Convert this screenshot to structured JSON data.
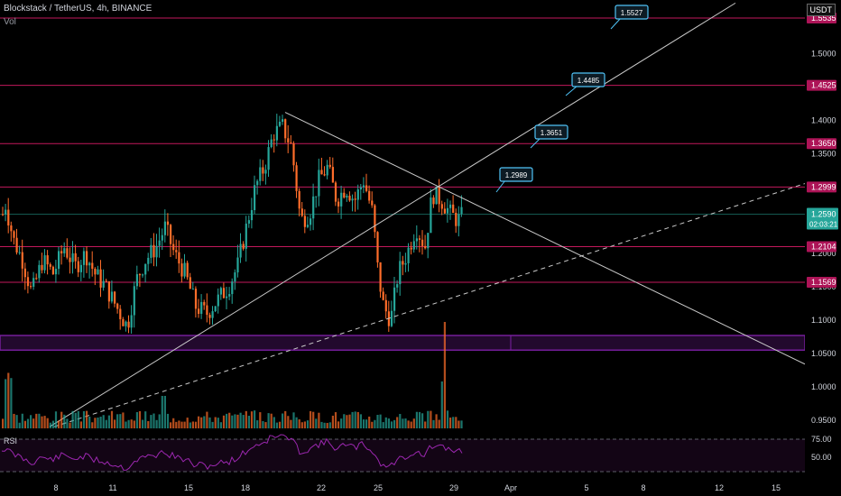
{
  "header": {
    "title": "Blockstack / TetherUS, 4h, BINANCE",
    "volume_label": "Vol",
    "rsi_label": "RSI",
    "currency": "USDT"
  },
  "colors": {
    "up": "#26a69a",
    "down": "#ff6d2a",
    "level_line": "#c2185b",
    "trend_line": "#c8c8c8",
    "zone": "#7b1fa2",
    "rsi": "#9c27b0",
    "callout_border": "#4fc3f7",
    "background": "#000000"
  },
  "chart_data": {
    "type": "candlestick",
    "symbol": "Blockstack / TetherUS",
    "interval": "4h",
    "exchange": "BINANCE",
    "x_tick_labels": [
      "8",
      "11",
      "15",
      "18",
      "22",
      "25",
      "29",
      "Apr",
      "5",
      "8",
      "12",
      "15"
    ],
    "y_tick_labels": [
      "0.9500",
      "1.0000",
      "1.0500",
      "1.1000",
      "1.1500",
      "1.2000",
      "1.3000",
      "1.3500",
      "1.4000",
      "1.5000"
    ],
    "y_ticks": [
      0.95,
      1.0,
      1.05,
      1.1,
      1.15,
      1.2,
      1.3,
      1.35,
      1.4,
      1.5
    ],
    "ylim": [
      0.937,
      1.576
    ],
    "horizontal_levels": [
      {
        "value": 1.5535,
        "label": "1.5535"
      },
      {
        "value": 1.4525,
        "label": "1.4525"
      },
      {
        "value": 1.365,
        "label": "1.3650"
      },
      {
        "value": 1.2999,
        "label": "1.2999"
      },
      {
        "value": 1.2104,
        "label": "1.2104"
      },
      {
        "value": 1.1569,
        "label": "1.1569"
      }
    ],
    "current_price": {
      "value": 1.259,
      "label": "1.2590",
      "countdown": "02:03:21"
    },
    "support_zone": [
      1.055,
      1.077
    ],
    "callouts": [
      "1.5527",
      "1.4485",
      "1.3651",
      "1.2989"
    ],
    "rsi_levels": [
      {
        "value": 75,
        "label": "75.00"
      },
      {
        "value": 50,
        "label": "50.00"
      }
    ],
    "volume_spike_day": "28",
    "trend_lines": [
      {
        "style": "solid",
        "description": "rising support from early March low"
      },
      {
        "style": "solid",
        "description": "descending resistance from March 19 high"
      },
      {
        "style": "dashed",
        "description": "rising lower support"
      }
    ]
  }
}
